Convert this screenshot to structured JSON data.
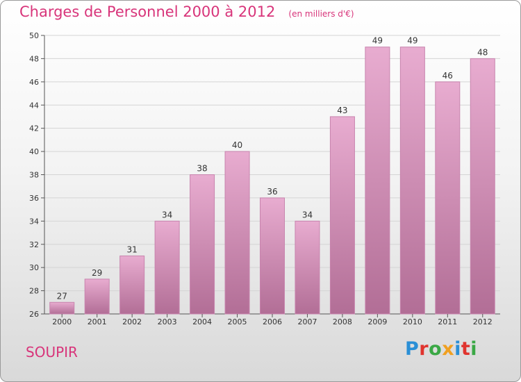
{
  "header": {
    "title": "Charges de Personnel 2000 à 2012",
    "subtitle": "(en milliers d'€)"
  },
  "commune": "SOUPIR",
  "logo": {
    "text": "Proxiti",
    "letter_colors": [
      "#2a8fd6",
      "#e0342e",
      "#3aa845",
      "#f0a020",
      "#2a8fd6",
      "#e0342e",
      "#3aa845"
    ]
  },
  "colors": {
    "accent": "#d8347a",
    "bar_top": "#e8acd0",
    "bar_bottom": "#b26e96",
    "bar_border": "#c884ae",
    "grid": "#d4d4d4",
    "axis": "#555555"
  },
  "chart_data": {
    "type": "bar",
    "title": "Charges de Personnel 2000 à 2012",
    "subtitle": "(en milliers d'€)",
    "xlabel": "",
    "ylabel": "",
    "categories": [
      "2000",
      "2001",
      "2002",
      "2003",
      "2004",
      "2005",
      "2006",
      "2007",
      "2008",
      "2009",
      "2010",
      "2011",
      "2012"
    ],
    "values": [
      27,
      29,
      31,
      34,
      38,
      40,
      36,
      34,
      43,
      49,
      49,
      46,
      48
    ],
    "ylim": [
      26,
      50
    ],
    "yticks": [
      26,
      28,
      30,
      32,
      34,
      36,
      38,
      40,
      42,
      44,
      46,
      48,
      50
    ],
    "grid": true,
    "data_labels": true
  }
}
